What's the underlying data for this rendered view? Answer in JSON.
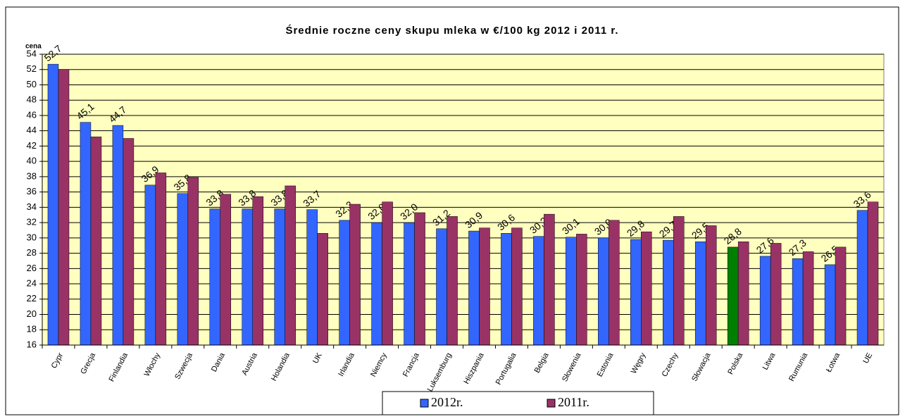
{
  "chart_data": {
    "type": "bar",
    "title": "Średnie roczne ceny skupu mleka w €/100 kg  2012 i 2011 r.",
    "y_label": "cena",
    "categories": [
      "Cypr",
      "Grecja",
      "Finlandia",
      "Włochy",
      "Szwecja",
      "Dania",
      "Austria",
      "Holandia",
      "UK",
      "Irlandia",
      "Niemcy",
      "Francja",
      "Luksemburg",
      "Hiszpania",
      "Portugalia",
      "Belgia",
      "Słowenia",
      "Estonia",
      "Węgry",
      "Czechy",
      "Słowacja",
      "Polska",
      "Litwa",
      "Rumunia",
      "Łotwa",
      "UE"
    ],
    "series": [
      {
        "name": "2012r.",
        "color": "#3366ff",
        "highlight_index": 21,
        "highlight_color": "#008000",
        "values": [
          52.7,
          45.1,
          44.7,
          36.9,
          35.8,
          33.8,
          33.8,
          33.8,
          33.7,
          32.3,
          32.0,
          32.0,
          31.2,
          30.9,
          30.6,
          30.2,
          30.1,
          30.0,
          29.8,
          29.7,
          29.5,
          28.8,
          27.6,
          27.3,
          26.5,
          33.6
        ],
        "value_labels": [
          "52,7",
          "45,1",
          "44,7",
          "36,9",
          "35,8",
          "33,8",
          "33,8",
          "33,8",
          "33,7",
          "32,3",
          "32,0",
          "32,0",
          "31,2",
          "30,9",
          "30,6",
          "30,2",
          "30,1",
          "30,0",
          "29,8",
          "29,7",
          "29,5",
          "28,8",
          "27,6",
          "27,3",
          "26,5",
          "33,6"
        ]
      },
      {
        "name": "2011r.",
        "color": "#993366",
        "values": [
          52.0,
          43.2,
          43.0,
          38.5,
          37.9,
          35.7,
          35.4,
          36.8,
          30.6,
          34.4,
          34.7,
          33.3,
          32.8,
          31.3,
          31.3,
          33.1,
          30.5,
          32.3,
          30.8,
          32.8,
          31.6,
          29.5,
          29.3,
          28.2,
          28.8,
          34.7
        ]
      }
    ],
    "ylim": [
      16,
      54
    ],
    "yticks": [
      16,
      18,
      20,
      22,
      24,
      26,
      28,
      30,
      32,
      34,
      36,
      38,
      40,
      42,
      44,
      46,
      48,
      50,
      52,
      54
    ],
    "grid": true,
    "legend": "bottom",
    "background": "#ffffc0"
  }
}
